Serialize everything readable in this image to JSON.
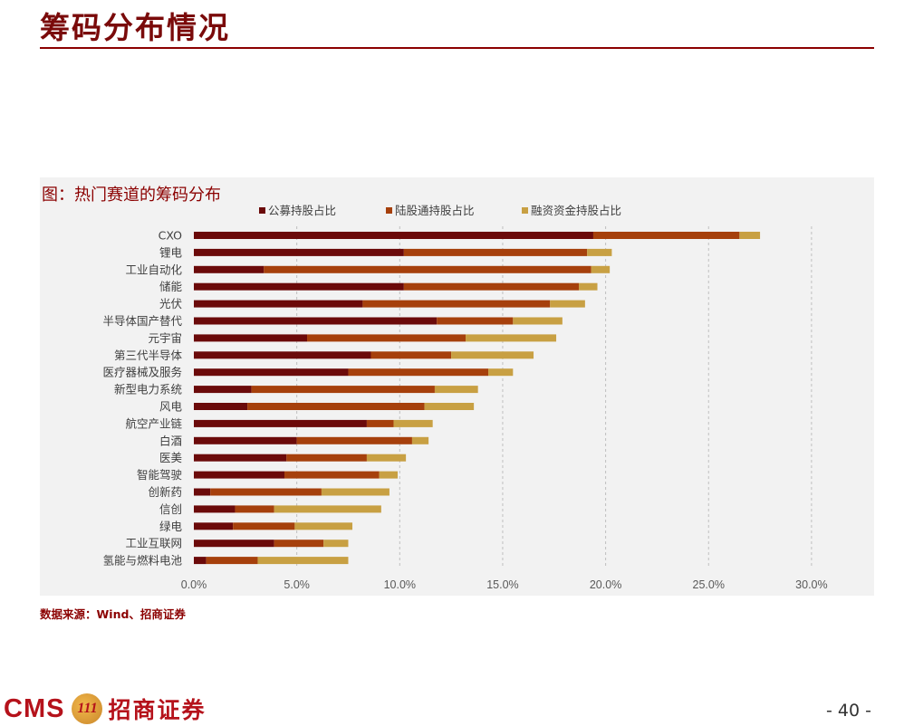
{
  "page": {
    "title": "筹码分布情况",
    "chart_caption": "图：热门赛道的筹码分布",
    "source_note": "数据来源：Wind、招商证券",
    "logo_text": "CMS",
    "logo_mark_text": "111",
    "logo_name": "招商证券",
    "page_number": "- 40 -"
  },
  "colors": {
    "title": "#7a0a0a",
    "accent": "#8b0000",
    "series": [
      "#6b0a0a",
      "#a6400c",
      "#c8a043"
    ],
    "grid": "#bfbfbf",
    "chart_bg": "#f2f2f2"
  },
  "chart_data": {
    "type": "bar",
    "orientation": "horizontal",
    "stacked": true,
    "title": "图：热门赛道的筹码分布",
    "legend_position": "top",
    "categories": [
      "CXO",
      "锂电",
      "工业自动化",
      "储能",
      "光伏",
      "半导体国产替代",
      "元宇宙",
      "第三代半导体",
      "医疗器械及服务",
      "新型电力系统",
      "风电",
      "航空产业链",
      "白酒",
      "医美",
      "智能驾驶",
      "创新药",
      "信创",
      "绿电",
      "工业互联网",
      "氢能与燃料电池"
    ],
    "series": [
      {
        "name": "公募持股占比",
        "values": [
          19.4,
          10.2,
          3.4,
          10.2,
          8.2,
          11.8,
          5.5,
          8.6,
          7.5,
          2.8,
          2.6,
          8.4,
          5.0,
          4.5,
          4.4,
          0.8,
          2.0,
          1.9,
          3.9,
          0.6
        ]
      },
      {
        "name": "陆股通持股占比",
        "values": [
          7.1,
          8.9,
          15.9,
          8.5,
          9.1,
          3.7,
          7.7,
          3.9,
          6.8,
          8.9,
          8.6,
          1.3,
          5.6,
          3.9,
          4.6,
          5.4,
          1.9,
          3.0,
          2.4,
          2.5
        ]
      },
      {
        "name": "融资资金持股占比",
        "values": [
          1.0,
          1.2,
          0.9,
          0.9,
          1.7,
          2.4,
          4.4,
          4.0,
          1.2,
          2.1,
          2.4,
          1.9,
          0.8,
          1.9,
          0.9,
          3.3,
          5.2,
          2.8,
          1.2,
          4.4
        ]
      }
    ],
    "x_ticks": [
      "0.0%",
      "5.0%",
      "10.0%",
      "15.0%",
      "20.0%",
      "25.0%",
      "30.0%"
    ],
    "xlim": [
      0,
      30
    ],
    "grid": true
  }
}
